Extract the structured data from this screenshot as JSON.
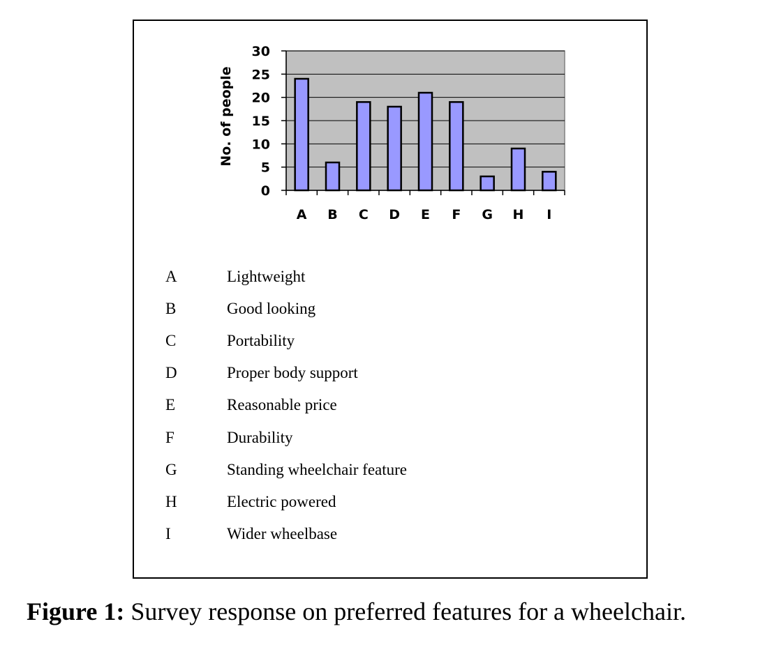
{
  "chart_data": {
    "type": "bar",
    "categories": [
      "A",
      "B",
      "C",
      "D",
      "E",
      "F",
      "G",
      "H",
      "I"
    ],
    "values": [
      24,
      6,
      19,
      18,
      21,
      19,
      3,
      9,
      4
    ],
    "ylabel": "No. of people",
    "xlabel": "",
    "ylim": [
      0,
      30
    ],
    "yticks": [
      0,
      5,
      10,
      15,
      20,
      25,
      30
    ],
    "grid": true,
    "plot_background": "#c0c0c0",
    "bar_color": "#9999ff",
    "bar_edge_color": "#000000"
  },
  "legend": [
    {
      "key": "A",
      "label": "Lightweight"
    },
    {
      "key": "B",
      "label": "Good looking"
    },
    {
      "key": "C",
      "label": "Portability"
    },
    {
      "key": "D",
      "label": "Proper body support"
    },
    {
      "key": "E",
      "label": "Reasonable price"
    },
    {
      "key": "F",
      "label": "Durability"
    },
    {
      "key": "G",
      "label": "Standing wheelchair feature"
    },
    {
      "key": "H",
      "label": "Electric powered"
    },
    {
      "key": "I",
      "label": "Wider wheelbase"
    }
  ],
  "caption": {
    "label": "Figure 1:",
    "text": " Survey response on preferred features for a wheelchair."
  }
}
